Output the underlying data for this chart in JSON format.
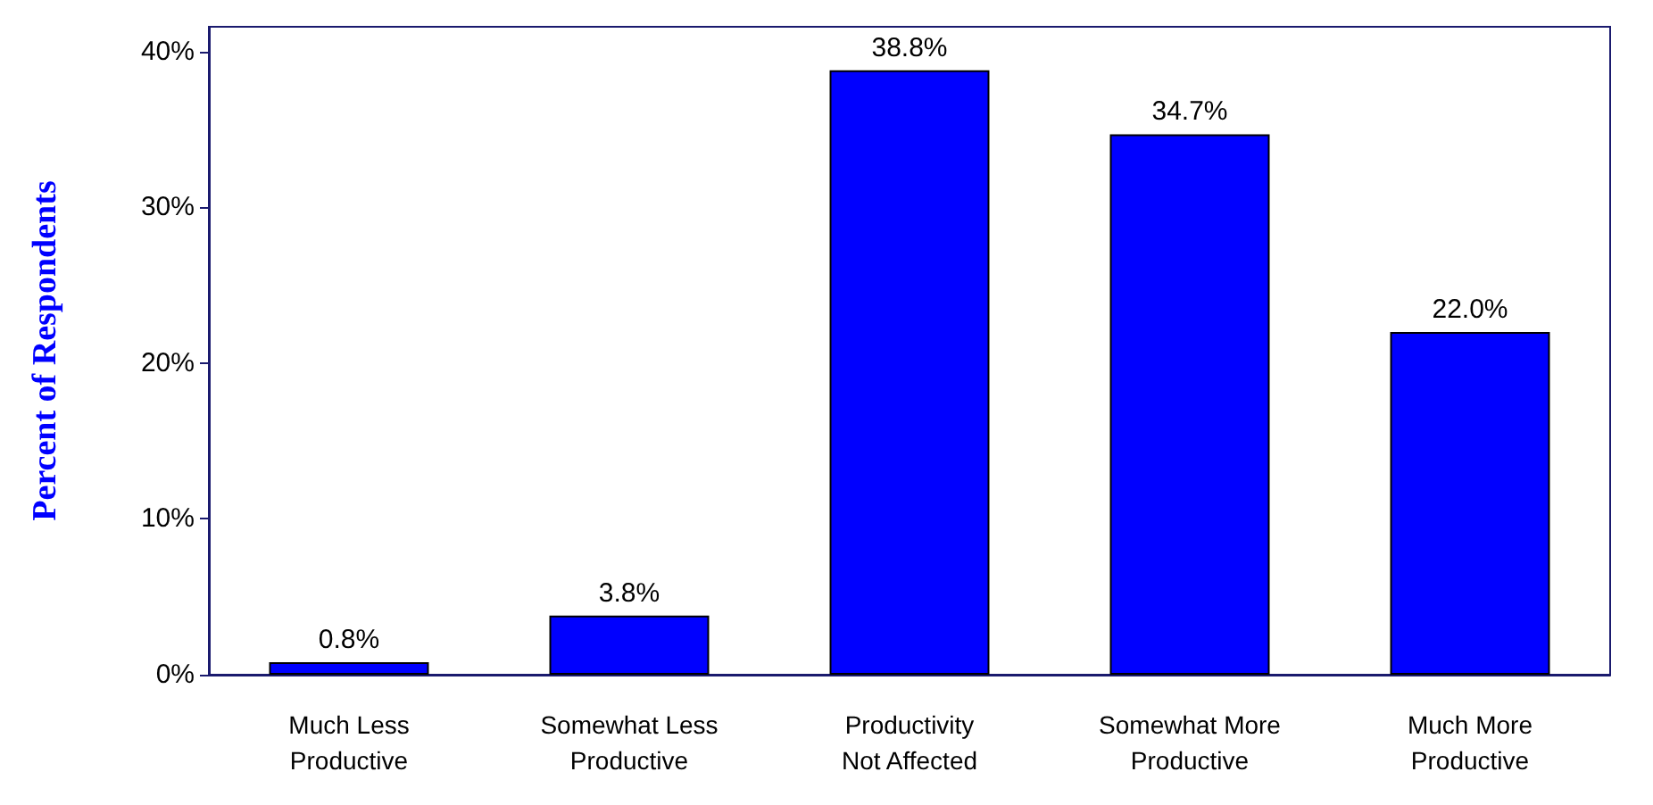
{
  "chart_data": {
    "type": "bar",
    "ylabel": "Percent of Respondents",
    "categories": [
      "Much Less\nProductive",
      "Somewhat Less\nProductive",
      "Productivity\nNot Affected",
      "Somewhat More\nProductive",
      "Much More\nProductive"
    ],
    "values": [
      0.8,
      3.8,
      38.8,
      34.7,
      22.0
    ],
    "value_labels": [
      "0.8%",
      "3.8%",
      "38.8%",
      "34.7%",
      "22.0%"
    ],
    "color": "#0000ff",
    "ylim": [
      0,
      41.6
    ],
    "yticks": [
      {
        "value": 0,
        "label": "0%"
      },
      {
        "value": 10,
        "label": "10%"
      },
      {
        "value": 20,
        "label": "20%"
      },
      {
        "value": 30,
        "label": "30%"
      },
      {
        "value": 40,
        "label": "40%"
      }
    ],
    "grid": false
  }
}
